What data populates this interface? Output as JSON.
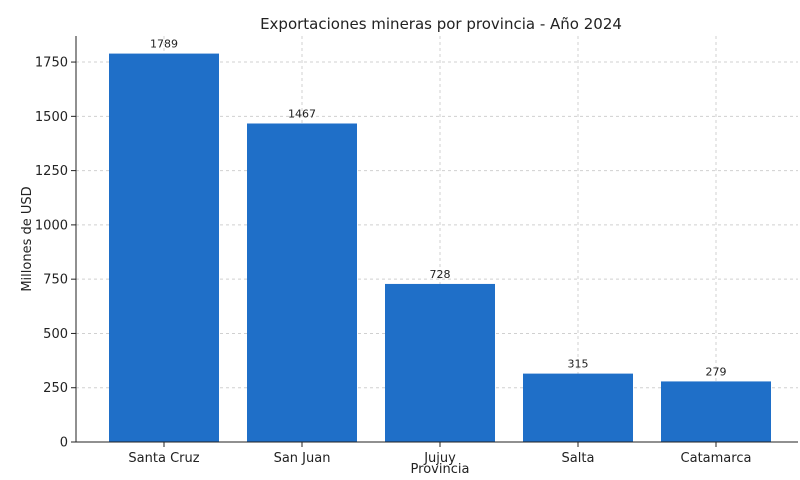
{
  "chart_data": {
    "type": "bar",
    "title": "Exportaciones mineras por provincia - Año 2024",
    "xlabel": "Provincia",
    "ylabel": "Millones de USD",
    "categories": [
      "Santa Cruz",
      "San Juan",
      "Jujuy",
      "Salta",
      "Catamarca"
    ],
    "values": [
      1789,
      1467,
      728,
      315,
      279
    ],
    "data_labels": [
      "1789",
      "1467",
      "728",
      "315",
      "279"
    ],
    "ylim": [
      0,
      1870
    ],
    "yticks": [
      0,
      250,
      500,
      750,
      1000,
      1250,
      1500,
      1750
    ],
    "ytick_labels": [
      "0",
      "250",
      "500",
      "750",
      "1000",
      "1250",
      "1500",
      "1750"
    ],
    "grid": true,
    "bar_color": "#1f6fc8"
  }
}
